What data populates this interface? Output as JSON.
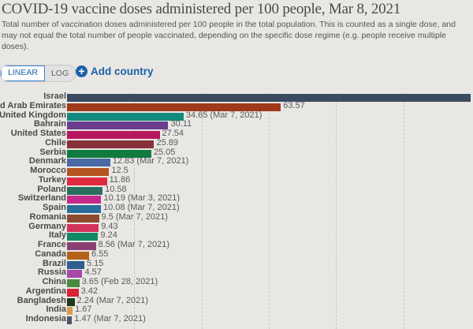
{
  "header": {
    "title": "COVID-19 vaccine doses administered per 100 people, Mar 8, 2021",
    "subtitle_lines": [
      "Total number of vaccination doses administered per 100 people in the total population. This is counted as a single dose,",
      "and may not equal the total number of people vaccinated, depending on the specific dose regime (e.g. people receive",
      "multiple doses)."
    ]
  },
  "controls": {
    "linear_label": "LINEAR",
    "log_label": "LOG",
    "add_country_label": "Add country",
    "add_icon": "plus-circle-icon"
  },
  "chart_data": {
    "type": "bar",
    "orientation": "horizontal",
    "title": "COVID-19 vaccine doses administered per 100 people, Mar 8, 2021",
    "xlim": [
      0,
      120
    ],
    "grid": true,
    "gridlines": [
      20,
      40,
      60,
      80,
      100
    ],
    "rows": [
      {
        "country": "Israel",
        "value": 120,
        "label": "",
        "color": "#3b4a60"
      },
      {
        "country": "United Arab Emirates",
        "value": 63.57,
        "label": "63.57",
        "color": "#a0391a"
      },
      {
        "country": "United Kingdom",
        "value": 34.65,
        "label": "34.65 (Mar 7, 2021)",
        "color": "#138a7e"
      },
      {
        "country": "Bahrain",
        "value": 30.11,
        "label": "30.11",
        "color": "#6a3d8f"
      },
      {
        "country": "United States",
        "value": 27.54,
        "label": "27.54",
        "color": "#b5185e"
      },
      {
        "country": "Chile",
        "value": 25.89,
        "label": "25.89",
        "color": "#883039"
      },
      {
        "country": "Serbia",
        "value": 25.05,
        "label": "25.05",
        "color": "#107a3f"
      },
      {
        "country": "Denmark",
        "value": 12.83,
        "label": "12.83 (Mar 7, 2021)",
        "color": "#4a6aa5"
      },
      {
        "country": "Morocco",
        "value": 12.5,
        "label": "12.5",
        "color": "#b4541e"
      },
      {
        "country": "Turkey",
        "value": 11.86,
        "label": "11.86",
        "color": "#e0283e"
      },
      {
        "country": "Poland",
        "value": 10.58,
        "label": "10.58",
        "color": "#2a6e5f"
      },
      {
        "country": "Switzerland",
        "value": 10.19,
        "label": "10.19 (Mar 3, 2021)",
        "color": "#c4298c"
      },
      {
        "country": "Spain",
        "value": 10.08,
        "label": "10.08 (Mar 7, 2021)",
        "color": "#286e9a"
      },
      {
        "country": "Romania",
        "value": 9.5,
        "label": "9.5 (Mar 7, 2021)",
        "color": "#8d4a2c"
      },
      {
        "country": "Germany",
        "value": 9.43,
        "label": "9.43",
        "color": "#d3325a"
      },
      {
        "country": "Italy",
        "value": 9.24,
        "label": "9.24",
        "color": "#128a66"
      },
      {
        "country": "France",
        "value": 8.56,
        "label": "8.56 (Mar 7, 2021)",
        "color": "#8a3f72"
      },
      {
        "country": "Canada",
        "value": 6.55,
        "label": "6.55",
        "color": "#b4621a"
      },
      {
        "country": "Brazil",
        "value": 5.15,
        "label": "5.15",
        "color": "#2f5f8e"
      },
      {
        "country": "Russia",
        "value": 4.57,
        "label": "4.57",
        "color": "#a848a8"
      },
      {
        "country": "China",
        "value": 3.65,
        "label": "3.65 (Feb 28, 2021)",
        "color": "#4a8a3e"
      },
      {
        "country": "Argentina",
        "value": 3.42,
        "label": "3.42",
        "color": "#d82136"
      },
      {
        "country": "Bangladesh",
        "value": 2.24,
        "label": "2.24 (Mar 7, 2021)",
        "color": "#1c3a1a"
      },
      {
        "country": "India",
        "value": 1.67,
        "label": "1.67",
        "color": "#d99a4a"
      },
      {
        "country": "Indonesia",
        "value": 1.47,
        "label": "1.47 (Mar 7, 2021)",
        "color": "#4a556a"
      }
    ]
  }
}
